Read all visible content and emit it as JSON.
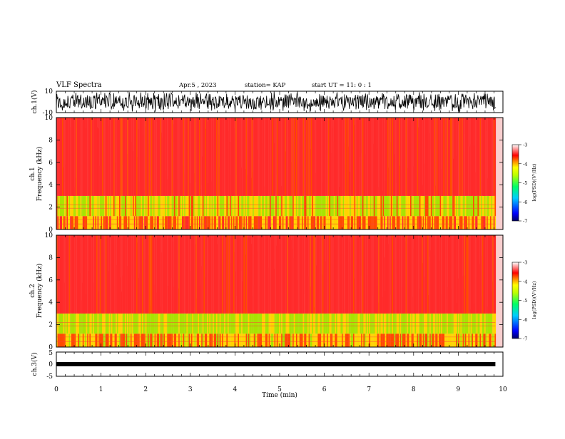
{
  "header": {
    "title": "VLF Spectra",
    "date": "Apr.5 , 2023",
    "station": "station= KAP",
    "start": "start UT = 11: 0 : 1"
  },
  "chart_data": [
    {
      "type": "line",
      "name": "ch1-waveform",
      "ylabel": "ch.1(V)",
      "ylim": [
        -10,
        10
      ],
      "y_ticks": [
        "10",
        "-10"
      ],
      "x_range_min": [
        0,
        9.83
      ],
      "color": "#000000"
    },
    {
      "type": "heatmap",
      "name": "ch1-spectrogram",
      "ylabel_lines": [
        "ch.1",
        "Frequency (kHz)"
      ],
      "ylim": [
        0,
        10
      ],
      "y_ticks": [
        "0",
        "2",
        "4",
        "6",
        "8",
        "10"
      ],
      "colorbar": {
        "label": "log(PSD)(V²/Hz)",
        "range": [
          -7,
          -3
        ],
        "ticks": [
          "-3",
          "-4",
          "-5",
          "-6",
          "-7"
        ]
      },
      "bands": [
        {
          "from_khz": 0,
          "to_khz": 1.2,
          "level": -4.2
        },
        {
          "from_khz": 1.2,
          "to_khz": 3.0,
          "level": -4.6
        },
        {
          "from_khz": 3.0,
          "to_khz": 10,
          "level": -3.6
        }
      ]
    },
    {
      "type": "heatmap",
      "name": "ch2-spectrogram",
      "ylabel_lines": [
        "ch.2",
        "Frequency (kHz)"
      ],
      "ylim": [
        0,
        10
      ],
      "y_ticks": [
        "0",
        "2",
        "4",
        "6",
        "8",
        "10"
      ],
      "colorbar": {
        "label": "log(PSD)(V²/Hz)",
        "range": [
          -7,
          -3
        ],
        "ticks": [
          "-3",
          "-4",
          "-5",
          "-6",
          "-7"
        ]
      },
      "bands": [
        {
          "from_khz": 0,
          "to_khz": 1.2,
          "level": -4.3
        },
        {
          "from_khz": 1.2,
          "to_khz": 3.0,
          "level": -4.7
        },
        {
          "from_khz": 3.0,
          "to_khz": 10,
          "level": -3.6
        }
      ]
    },
    {
      "type": "line",
      "name": "ch3-waveform",
      "ylabel": "ch.3(V)",
      "ylim": [
        -5,
        5
      ],
      "y_ticks": [
        "5",
        "0",
        "-5"
      ],
      "x_range_min": [
        0,
        9.83
      ],
      "color": "#000000"
    }
  ],
  "x_axis": {
    "label": "Time (min)",
    "xlim": [
      0,
      10
    ],
    "ticks": [
      "0",
      "1",
      "2",
      "3",
      "4",
      "5",
      "6",
      "7",
      "8",
      "9",
      "10"
    ]
  },
  "colors": {
    "spectrogram_bg": "#f8cfcf",
    "colormap": [
      "#000066",
      "#0000ff",
      "#00ccff",
      "#00ff66",
      "#aaff00",
      "#ffff00",
      "#ff6600",
      "#ff0000",
      "#ffffff"
    ]
  }
}
